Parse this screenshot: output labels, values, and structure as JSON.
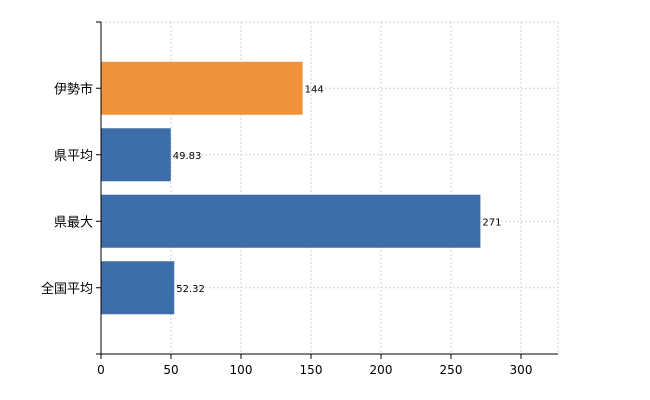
{
  "chart_data": {
    "type": "bar",
    "orientation": "horizontal",
    "categories": [
      "伊勢市",
      "県平均",
      "県最大",
      "全国平均"
    ],
    "values": [
      144,
      49.83,
      271,
      52.32
    ],
    "value_labels": [
      "144",
      "49.83",
      "271",
      "52.32"
    ],
    "bar_colors": [
      "#f0923a",
      "#3e6ea9",
      "#3e6ea9",
      "#3e6ea9"
    ],
    "xlim": [
      0,
      325
    ],
    "x_ticks": [
      0,
      50,
      100,
      150,
      200,
      250,
      300
    ],
    "title": "",
    "xlabel": "",
    "ylabel": "",
    "grid": true,
    "legend": "none"
  }
}
